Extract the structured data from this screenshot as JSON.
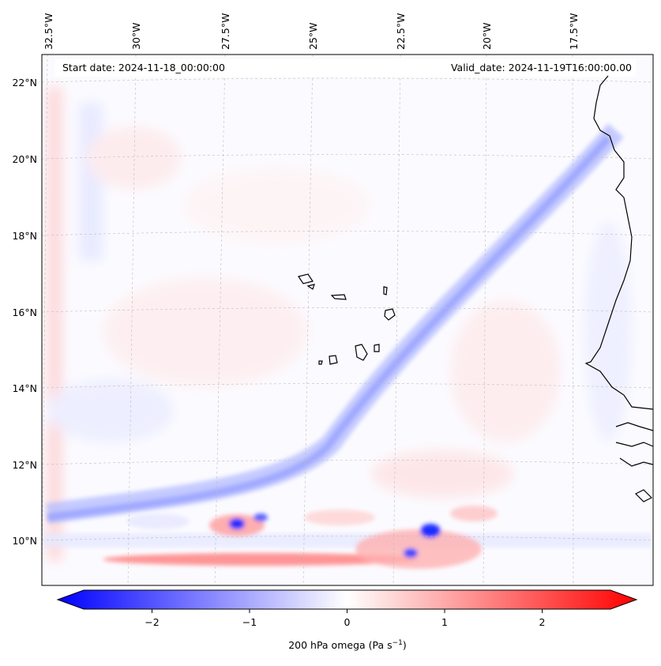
{
  "map": {
    "start_label": "Start date: 2024-11-18_00:00:00",
    "valid_label": "Valid_date: 2024-11-19T16:00:00.00",
    "lon_labels": [
      "32.5°W",
      "30°W",
      "27.5°W",
      "25°W",
      "22.5°W",
      "20°W",
      "17.5°W"
    ],
    "lat_labels": [
      "22°N",
      "20°N",
      "18°N",
      "16°N",
      "14°N",
      "12°N",
      "10°N"
    ]
  },
  "colorbar": {
    "ticks": [
      "−2",
      "−1",
      "0",
      "1",
      "2"
    ],
    "tick_values": [
      -2,
      -1,
      0,
      1,
      2
    ],
    "range": [
      -2.7,
      2.7
    ],
    "label": "200 hPa omega (Pa s",
    "label_exp": "−1",
    "label_close": ")",
    "colors": {
      "neg": "#0000ff",
      "zero": "#ffffff",
      "pos": "#ff0000"
    }
  },
  "colors": {
    "coast": "#000000",
    "grid": "#bdbdbd"
  }
}
